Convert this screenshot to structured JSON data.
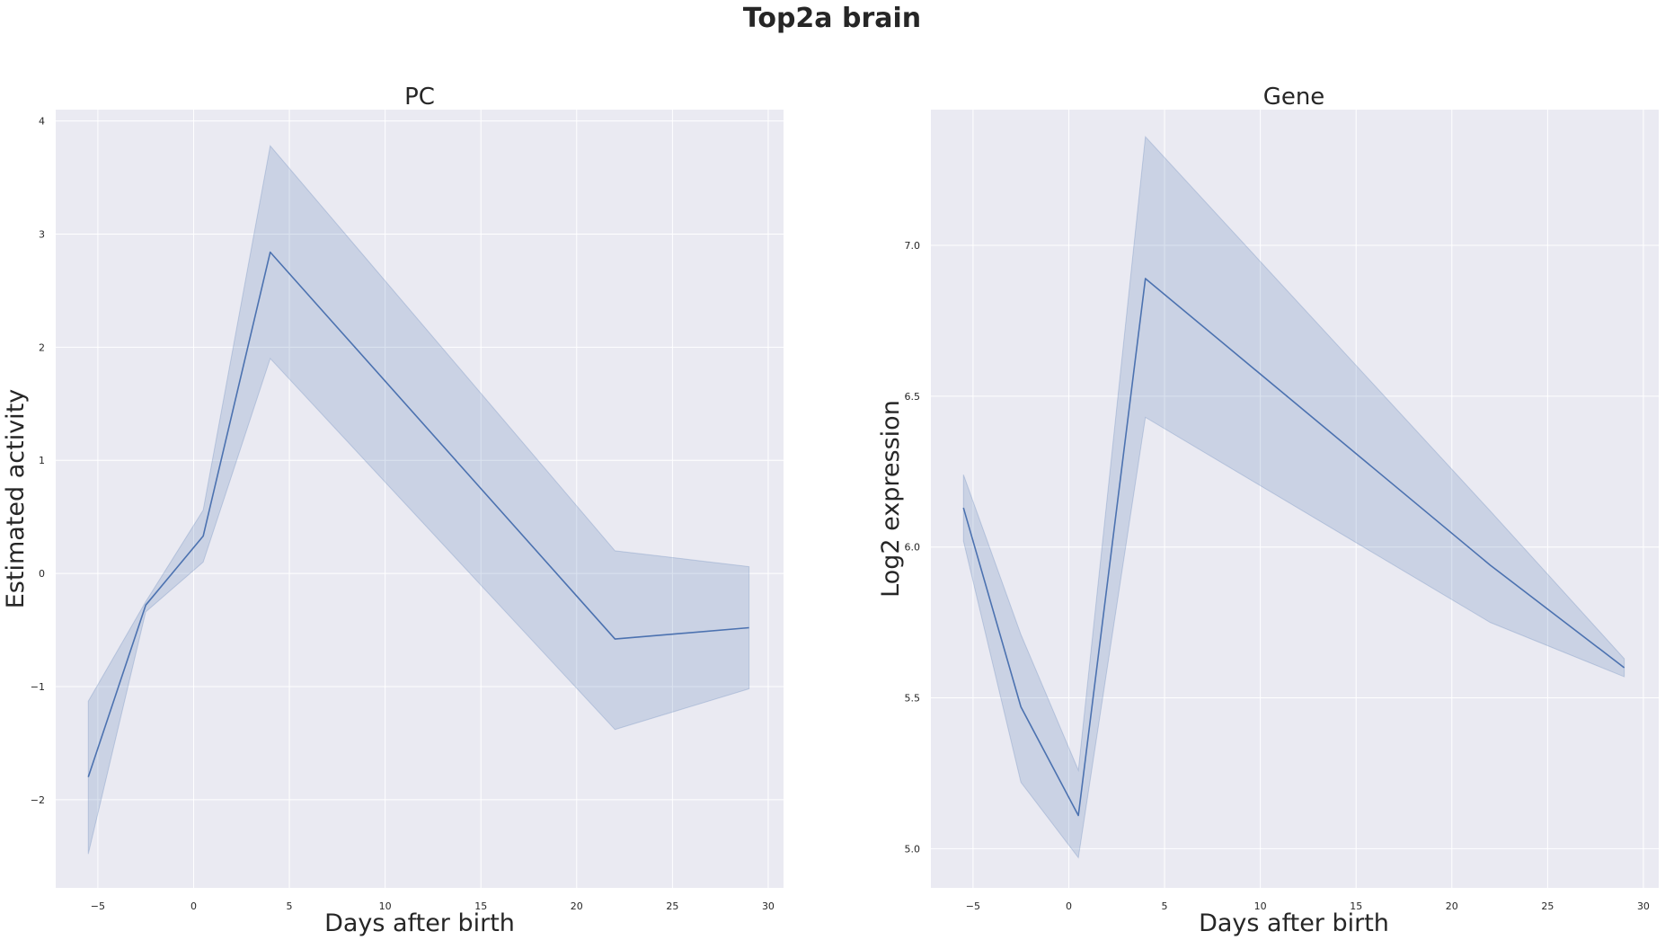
{
  "title": "Top2a brain",
  "chart_data": [
    {
      "type": "line",
      "title": "PC",
      "xlabel": "Days after birth",
      "ylabel": "Estimated activity",
      "xlim": [
        -7.2,
        30.8
      ],
      "ylim": [
        -2.78,
        4.1
      ],
      "xticks": [
        -5,
        0,
        5,
        10,
        15,
        20,
        25,
        30
      ],
      "xtick_labels": [
        "−5",
        "0",
        "5",
        "10",
        "15",
        "20",
        "25",
        "30"
      ],
      "yticks": [
        -2,
        -1,
        0,
        1,
        2,
        3,
        4
      ],
      "ytick_labels": [
        "−2",
        "−1",
        "0",
        "1",
        "2",
        "3",
        "4"
      ],
      "grid": true,
      "series": [
        {
          "x": [
            -5.5,
            -2.5,
            0.5,
            4,
            22,
            29
          ],
          "y": [
            -1.8,
            -0.28,
            0.33,
            2.84,
            -0.58,
            -0.48
          ],
          "ci_low": [
            -2.48,
            -0.34,
            0.1,
            1.9,
            -1.38,
            -1.02
          ],
          "ci_high": [
            -1.13,
            -0.25,
            0.56,
            3.78,
            0.2,
            0.06
          ]
        }
      ],
      "colors": {
        "line": "#4c72b0",
        "band": "#4c72b0",
        "background": "#eaeaf2",
        "grid": "#ffffff"
      }
    },
    {
      "type": "line",
      "title": "Gene",
      "xlabel": "Days after birth",
      "ylabel": "Log2 expression",
      "xlim": [
        -7.2,
        30.8
      ],
      "ylim": [
        4.87,
        7.45
      ],
      "xticks": [
        -5,
        0,
        5,
        10,
        15,
        20,
        25,
        30
      ],
      "xtick_labels": [
        "−5",
        "0",
        "5",
        "10",
        "15",
        "20",
        "25",
        "30"
      ],
      "yticks": [
        5.0,
        5.5,
        6.0,
        6.5,
        7.0
      ],
      "ytick_labels": [
        "5.0",
        "5.5",
        "6.0",
        "6.5",
        "7.0"
      ],
      "grid": true,
      "series": [
        {
          "x": [
            -5.5,
            -2.5,
            0.5,
            4,
            22,
            29
          ],
          "y": [
            6.13,
            5.47,
            5.11,
            6.89,
            5.94,
            5.6
          ],
          "ci_low": [
            6.02,
            5.22,
            4.97,
            6.43,
            5.75,
            5.57
          ],
          "ci_high": [
            6.24,
            5.71,
            5.26,
            7.36,
            6.12,
            5.63
          ]
        }
      ],
      "colors": {
        "line": "#4c72b0",
        "band": "#4c72b0",
        "background": "#eaeaf2",
        "grid": "#ffffff"
      }
    }
  ]
}
